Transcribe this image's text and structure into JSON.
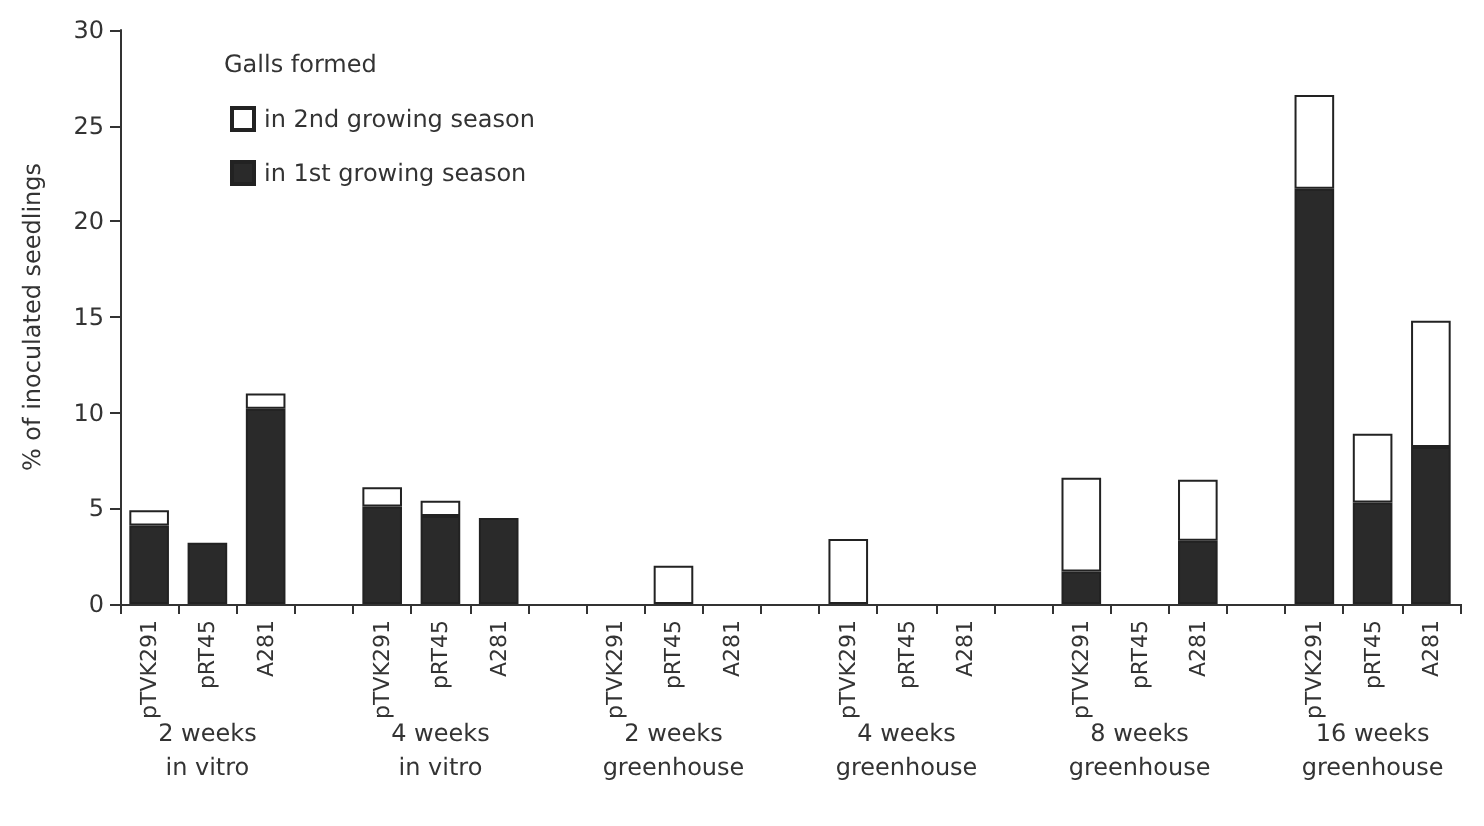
{
  "chart_data": {
    "type": "bar",
    "stacked": true,
    "ylabel": "% of inoculated seedlings",
    "legend_title": "Galls formed",
    "legend": "top left",
    "grid": false,
    "categories": [
      "pTVK291",
      "pRT45",
      "A281",
      null,
      "pTVK291",
      "pRT45",
      "A281",
      null,
      "pTVK291",
      "pRT45",
      "A281",
      null,
      "pTVK291",
      "pRT45",
      "A281",
      null,
      "pTVK291",
      "pRT45",
      "A281",
      null,
      "pTVK291",
      "pRT45",
      "A281"
    ],
    "series": [
      {
        "name": "in 1st growing season",
        "color": "#2a2a2a",
        "values": [
          4.1,
          3.2,
          10.2,
          null,
          5.1,
          4.6,
          4.5,
          null,
          null,
          null,
          null,
          null,
          null,
          null,
          null,
          null,
          1.7,
          null,
          3.3,
          null,
          21.7,
          5.3,
          8.2
        ]
      },
      {
        "name": "in 2nd growing season",
        "color": "#ffffff",
        "values": [
          0.8,
          null,
          0.8,
          null,
          1.0,
          0.8,
          null,
          null,
          null,
          2.0,
          null,
          null,
          3.4,
          null,
          null,
          null,
          4.9,
          null,
          3.2,
          null,
          4.9,
          3.6,
          6.6
        ]
      }
    ],
    "ylim": [
      0,
      30
    ],
    "yticks": [
      0,
      5,
      10,
      15,
      20,
      25,
      30
    ],
    "annotations": [
      "2 weeks\nin vitro",
      "4 weeks\nin vitro",
      "2 weeks\ngreenhouse",
      "4 weeks\ngreenhouse",
      "8 weeks\ngreenhouse",
      "16 weeks\ngreenhouse"
    ]
  }
}
